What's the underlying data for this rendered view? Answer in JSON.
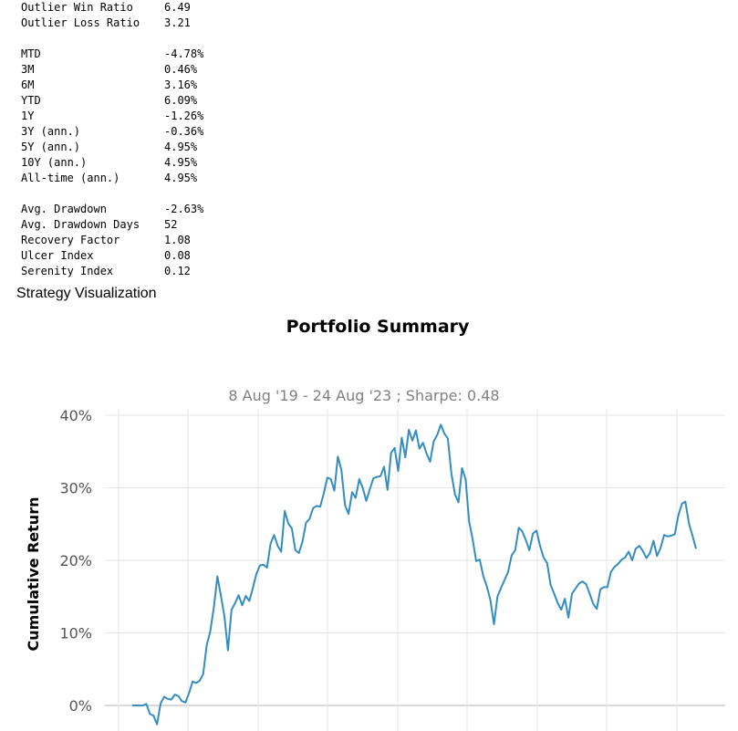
{
  "stats": {
    "groups": [
      [
        {
          "label": "Outlier Win Ratio",
          "value": "6.49"
        },
        {
          "label": "Outlier Loss Ratio",
          "value": "3.21"
        }
      ],
      [
        {
          "label": "MTD",
          "value": "-4.78%"
        },
        {
          "label": "3M",
          "value": "0.46%"
        },
        {
          "label": "6M",
          "value": "3.16%"
        },
        {
          "label": "YTD",
          "value": "6.09%"
        },
        {
          "label": "1Y",
          "value": "-1.26%"
        },
        {
          "label": "3Y (ann.)",
          "value": "-0.36%"
        },
        {
          "label": "5Y (ann.)",
          "value": "4.95%"
        },
        {
          "label": "10Y (ann.)",
          "value": "4.95%"
        },
        {
          "label": "All-time (ann.)",
          "value": "4.95%"
        }
      ],
      [
        {
          "label": "Avg. Drawdown",
          "value": "-2.63%"
        },
        {
          "label": "Avg. Drawdown Days",
          "value": "52"
        },
        {
          "label": "Recovery Factor",
          "value": "1.08"
        },
        {
          "label": "Ulcer Index",
          "value": "0.08"
        },
        {
          "label": "Serenity Index",
          "value": "0.12"
        }
      ]
    ]
  },
  "section_heading": "Strategy Visualization",
  "chart_data": {
    "type": "line",
    "title": "Portfolio Summary",
    "subtitle": "8 Aug '19 - 24 Aug '23 ;  Sharpe: 0.48",
    "ylabel": "Cumulative Return",
    "ylim": [
      0,
      40
    ],
    "yticks": [
      "0%",
      "10%",
      "20%",
      "30%",
      "40%"
    ],
    "ytick_values": [
      0,
      10,
      20,
      30,
      40
    ],
    "grid": true,
    "line_color": "#348dc1",
    "series": [
      {
        "values": [
          0,
          0,
          0,
          0,
          0.2,
          -1.2,
          -1.4,
          -2.6,
          0.3,
          1.2,
          0.9,
          0.8,
          1.5,
          1.3,
          0.6,
          0.4,
          1.7,
          3.3,
          3.1,
          3.4,
          4.3,
          8.3,
          10.2,
          13.5,
          17.8,
          15.1,
          12.2,
          7.6,
          13.2,
          14.1,
          15.2,
          13.8,
          15.1,
          14.4,
          16.2,
          18.1,
          19.3,
          19.4,
          19.0,
          22.3,
          23.5,
          22.0,
          21.2,
          26.8,
          25.1,
          24.4,
          21.4,
          21.0,
          22.6,
          25.2,
          25.7,
          27.2,
          27.5,
          27.4,
          29.2,
          31.4,
          31.2,
          29.6,
          34.3,
          32.4,
          27.6,
          26.4,
          29.4,
          28.6,
          31.2,
          30.0,
          28.2,
          29.8,
          31.3,
          31.5,
          31.6,
          32.9,
          29.7,
          34.8,
          35.5,
          32.3,
          36.9,
          34.2,
          38.0,
          36.5,
          37.9,
          35.4,
          36.2,
          34.7,
          33.6,
          36.4,
          37.3,
          38.7,
          37.5,
          36.8,
          32.0,
          29.1,
          28.0,
          32.7,
          31.2,
          25.4,
          22.9,
          19.9,
          20.1,
          17.8,
          16.4,
          14.5,
          11.2,
          15.0,
          16.2,
          17.3,
          18.4,
          20.7,
          21.4,
          24.5,
          24.0,
          22.8,
          21.4,
          23.7,
          24.1,
          22.0,
          20.4,
          19.6,
          16.6,
          15.4,
          14.1,
          13.2,
          14.7,
          12.1,
          15.4,
          16.1,
          16.8,
          17.1,
          16.7,
          15.4,
          14.0,
          13.3,
          16.0,
          16.3,
          16.3,
          18.4,
          19.1,
          19.5,
          20.1,
          20.4,
          21.2,
          20.0,
          21.6,
          22.0,
          21.3,
          20.3,
          21.0,
          22.7,
          20.6,
          21.7,
          23.5,
          23.3,
          23.4,
          23.6,
          26.2,
          27.8,
          28.1,
          25.1,
          23.4,
          21.6
        ]
      }
    ]
  }
}
